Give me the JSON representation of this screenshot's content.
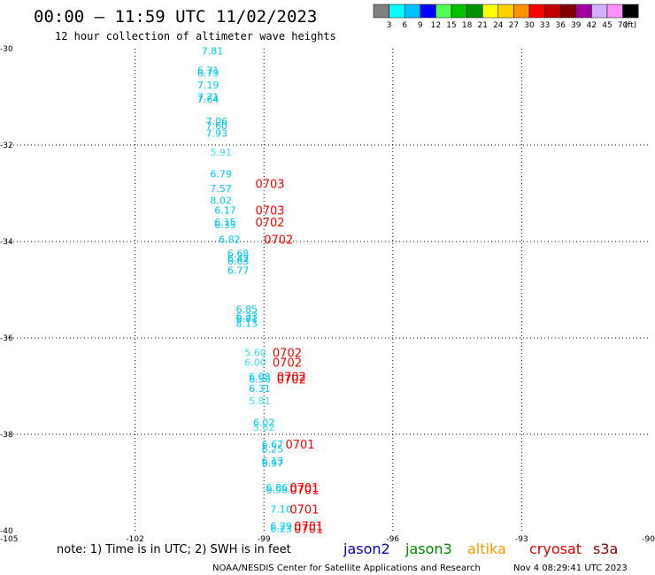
{
  "header": {
    "title": "00:00 — 11:59 UTC 11/02/2023",
    "subtitle": "12 hour collection of altimeter wave heights"
  },
  "colorbar": {
    "labels": [
      "3",
      "6",
      "9",
      "12",
      "15",
      "18",
      "21",
      "24",
      "27",
      "30",
      "33",
      "36",
      "39",
      "42",
      "45",
      "70"
    ],
    "unit": "(ft)",
    "colors": [
      "#808080",
      "#00ffff",
      "#00c0ff",
      "#0000ff",
      "#50ff50",
      "#00c000",
      "#009000",
      "#ffff00",
      "#ffd000",
      "#ff9000",
      "#ff0000",
      "#c00000",
      "#800000",
      "#a000a0",
      "#d0b0ff",
      "#ff90ff",
      "#000000"
    ]
  },
  "note": "note: 1) Time is in UTC; 2) SWH is in feet",
  "legend": [
    {
      "name": "jason2",
      "color": "#0000cc"
    },
    {
      "name": "jason3",
      "color": "#008800"
    },
    {
      "name": "altika",
      "color": "#ff9900"
    },
    {
      "name": "cryosat",
      "color": "#dd0000"
    },
    {
      "name": "s3a",
      "color": "#880000"
    }
  ],
  "footer": {
    "left": "NOAA/NESDIS Center for Satellite Applications and Research",
    "right": "Nov  4 08:29:41 UTC 2023"
  },
  "chart_data": {
    "type": "scatter",
    "x_range": [
      -105,
      -90
    ],
    "y_range": [
      -40,
      -30
    ],
    "x_ticks": [
      "-105",
      "-102",
      "-99",
      "-96",
      "-93",
      "-90"
    ],
    "y_ticks": [
      "-30",
      "-32",
      "-34",
      "-36",
      "-38",
      "-40"
    ],
    "grid": true,
    "points": [
      {
        "lon": -100.2,
        "lat": -30.05,
        "label": "7.81",
        "color": "#00c8f0"
      },
      {
        "lon": -100.3,
        "lat": -30.45,
        "label": "6.71",
        "color": "#00c8f0"
      },
      {
        "lon": -100.3,
        "lat": -30.5,
        "label": "6.79",
        "color": "#00c8f0"
      },
      {
        "lon": -100.3,
        "lat": -30.75,
        "label": "7.19",
        "color": "#00c8f0"
      },
      {
        "lon": -100.3,
        "lat": -31.0,
        "label": "7.71",
        "color": "#00c8f0"
      },
      {
        "lon": -100.3,
        "lat": -31.05,
        "label": "7.64",
        "color": "#00c8f0"
      },
      {
        "lon": -100.1,
        "lat": -31.5,
        "label": "7.06",
        "color": "#00c8f0"
      },
      {
        "lon": -100.1,
        "lat": -31.6,
        "label": "7.60",
        "color": "#00c8f0"
      },
      {
        "lon": -100.1,
        "lat": -31.75,
        "label": "7.93",
        "color": "#00c8f0"
      },
      {
        "lon": -100.0,
        "lat": -32.15,
        "label": "5.91",
        "color": "#40e0f0"
      },
      {
        "lon": -100.0,
        "lat": -32.6,
        "label": "6.79",
        "color": "#00c8f0"
      },
      {
        "lon": -100.0,
        "lat": -32.9,
        "label": "7.57",
        "color": "#00c8f0"
      },
      {
        "lon": -100.0,
        "lat": -33.15,
        "label": "8.02",
        "color": "#00c8f0"
      },
      {
        "lon": -99.9,
        "lat": -33.35,
        "label": "6.17",
        "color": "#00c8f0"
      },
      {
        "lon": -99.9,
        "lat": -33.6,
        "label": "6.15",
        "color": "#00c8f0"
      },
      {
        "lon": -99.9,
        "lat": -33.65,
        "label": "6.35",
        "color": "#00c8f0"
      },
      {
        "lon": -99.8,
        "lat": -33.95,
        "label": "6.82",
        "color": "#00c8f0"
      },
      {
        "lon": -99.6,
        "lat": -34.25,
        "label": "6.68",
        "color": "#00c8f0"
      },
      {
        "lon": -99.6,
        "lat": -34.35,
        "label": "6.42",
        "color": "#00c8f0"
      },
      {
        "lon": -99.6,
        "lat": -34.4,
        "label": "6.63",
        "color": "#00c8f0"
      },
      {
        "lon": -99.6,
        "lat": -34.6,
        "label": "6.77",
        "color": "#00c8f0"
      },
      {
        "lon": -99.4,
        "lat": -35.4,
        "label": "6.85",
        "color": "#00c8f0"
      },
      {
        "lon": -99.4,
        "lat": -35.55,
        "label": "6.33",
        "color": "#00c8f0"
      },
      {
        "lon": -99.4,
        "lat": -35.6,
        "label": "6.81",
        "color": "#00c8f0"
      },
      {
        "lon": -99.4,
        "lat": -35.7,
        "label": "8.13",
        "color": "#00c8f0"
      },
      {
        "lon": -99.2,
        "lat": -36.3,
        "label": "5.60",
        "color": "#40e0f0"
      },
      {
        "lon": -99.2,
        "lat": -36.5,
        "label": "6.00",
        "color": "#40e0f0"
      },
      {
        "lon": -99.1,
        "lat": -36.8,
        "label": "6.08",
        "color": "#00c8f0"
      },
      {
        "lon": -99.1,
        "lat": -36.85,
        "label": "6.56",
        "color": "#00c8f0"
      },
      {
        "lon": -99.1,
        "lat": -37.05,
        "label": "6.31",
        "color": "#00c8f0"
      },
      {
        "lon": -99.1,
        "lat": -37.3,
        "label": "5.81",
        "color": "#40e0f0"
      },
      {
        "lon": -99.0,
        "lat": -37.75,
        "label": "6.02",
        "color": "#00c8f0"
      },
      {
        "lon": -99.0,
        "lat": -37.85,
        "label": "5.62",
        "color": "#40e0f0"
      },
      {
        "lon": -98.8,
        "lat": -38.2,
        "label": "6.67",
        "color": "#00c8f0"
      },
      {
        "lon": -98.8,
        "lat": -38.3,
        "label": "6.25",
        "color": "#00c8f0"
      },
      {
        "lon": -98.8,
        "lat": -38.55,
        "label": "6.13",
        "color": "#00c8f0"
      },
      {
        "lon": -98.8,
        "lat": -38.6,
        "label": "6.97",
        "color": "#00c8f0"
      },
      {
        "lon": -98.7,
        "lat": -39.1,
        "label": "6.86",
        "color": "#00c8f0"
      },
      {
        "lon": -98.7,
        "lat": -39.15,
        "label": "6.98",
        "color": "#00c8f0"
      },
      {
        "lon": -98.6,
        "lat": -39.55,
        "label": "7.10",
        "color": "#00c8f0"
      },
      {
        "lon": -98.6,
        "lat": -39.9,
        "label": "6.29",
        "color": "#00c8f0"
      },
      {
        "lon": -98.6,
        "lat": -39.95,
        "label": "6.23",
        "color": "#00c8f0"
      }
    ],
    "pass_labels": [
      {
        "lon": -99.2,
        "lat": -32.8,
        "label": "0703",
        "color": "#ff0000"
      },
      {
        "lon": -99.2,
        "lat": -33.35,
        "label": "0703",
        "color": "#ff0000"
      },
      {
        "lon": -99.2,
        "lat": -33.6,
        "label": "0702",
        "color": "#ff0000"
      },
      {
        "lon": -99.0,
        "lat": -33.95,
        "label": "0702",
        "color": "#ff0000"
      },
      {
        "lon": -98.8,
        "lat": -36.3,
        "label": "0702",
        "color": "#ff0000"
      },
      {
        "lon": -98.8,
        "lat": -36.5,
        "label": "0702",
        "color": "#ff0000"
      },
      {
        "lon": -98.7,
        "lat": -36.8,
        "label": "0702",
        "color": "#ff0000"
      },
      {
        "lon": -98.7,
        "lat": -36.85,
        "label": "0702",
        "color": "#ff0000"
      },
      {
        "lon": -98.5,
        "lat": -38.2,
        "label": "0701",
        "color": "#ff0000"
      },
      {
        "lon": -98.4,
        "lat": -39.1,
        "label": "0701",
        "color": "#ff0000"
      },
      {
        "lon": -98.4,
        "lat": -39.15,
        "label": "0701",
        "color": "#ff0000"
      },
      {
        "lon": -98.4,
        "lat": -39.55,
        "label": "0701",
        "color": "#ff0000"
      },
      {
        "lon": -98.3,
        "lat": -39.9,
        "label": "0701",
        "color": "#ff0000"
      },
      {
        "lon": -98.3,
        "lat": -39.95,
        "label": "0701",
        "color": "#ff0000"
      }
    ]
  }
}
